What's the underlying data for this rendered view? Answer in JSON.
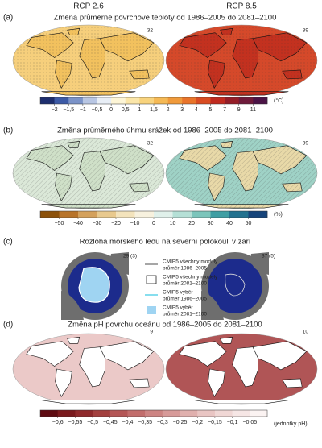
{
  "columns": [
    "RCP 2.6",
    "RCP 8.5"
  ],
  "panels": [
    {
      "label": "(a)",
      "title": "Změna průměrné povrchové teploty od 1986–2005 do 2081–2100",
      "counts": [
        32,
        39
      ],
      "colorbar": {
        "ticks": [
          "−2",
          "−1,5",
          "−1",
          "−0,5",
          "0",
          "0,5",
          "1",
          "1,5",
          "2",
          "3",
          "4",
          "5",
          "7",
          "9",
          "11"
        ],
        "unit": "(°C)",
        "colors": [
          "#1d2e6e",
          "#3c5aa6",
          "#7b93c8",
          "#b8c6e3",
          "#e8eef6",
          "#fdf5d6",
          "#fbe6a9",
          "#f8d37d",
          "#f5b955",
          "#f09a3b",
          "#e9742a",
          "#d94c22",
          "#c02a1f",
          "#941d27",
          "#6e1a3a",
          "#4b1346"
        ]
      },
      "map_colors": [
        "#f6cf7c",
        "#d5492a"
      ]
    },
    {
      "label": "(b)",
      "title": "Změna průměrného úhrnu srážek od 1986–2005 do 2081–2100",
      "counts": [
        32,
        39
      ],
      "colorbar": {
        "ticks": [
          "−50",
          "−40",
          "−30",
          "−20",
          "−10",
          "0",
          "10",
          "20",
          "30",
          "40",
          "50"
        ],
        "unit": "(%)",
        "colors": [
          "#8c510a",
          "#b8742a",
          "#d4a15c",
          "#e8c98e",
          "#f3e3bc",
          "#f7f1de",
          "#e0f0ea",
          "#b5e0d6",
          "#7cc5bb",
          "#3f9ea3",
          "#23728f",
          "#16447a"
        ]
      },
      "map_colors": [
        "#dbe8d8",
        "#9fd2c6"
      ]
    },
    {
      "label": "(c)",
      "title": "Rozloha mořského ledu na severní polokouli v září",
      "counts": [
        "29 (3)",
        "37 (5)"
      ],
      "legend": [
        {
          "lines": [
            "CMIP5 všechny modely",
            "průměr 1986–2005"
          ],
          "symbol": "line",
          "color": "#888888"
        },
        {
          "lines": [
            "CMIP5 všechny modely",
            "průměr 2081–2100"
          ],
          "symbol": "box",
          "color": "#ffffff"
        },
        {
          "lines": [
            "CMIP5 výběr",
            "průměr 1986–2005"
          ],
          "symbol": "line",
          "color": "#5fd3e8"
        },
        {
          "lines": [
            "CMIP5 výběr",
            "průměr 2081–2100"
          ],
          "symbol": "box",
          "color": "#9fd4f2"
        }
      ]
    },
    {
      "label": "(d)",
      "title": "Změna pH povrchu oceánu od 1986–2005 do 2081–2100",
      "counts": [
        9,
        10
      ],
      "colorbar": {
        "ticks": [
          "−0,6",
          "−0,55",
          "−0,5",
          "−0,45",
          "−0,4",
          "−0,35",
          "−0,3",
          "−0,25",
          "−0,2",
          "−0,15",
          "−0,1",
          "−0,05"
        ],
        "unit": "(jednotky pH)",
        "colors": [
          "#5e0b12",
          "#7a1a1e",
          "#8f2a2c",
          "#a3403f",
          "#b45656",
          "#c26d6c",
          "#cd8483",
          "#d79a99",
          "#e0b0ae",
          "#e9c5c3",
          "#f0d7d5",
          "#f6e6e5",
          "#fbf3f2"
        ]
      },
      "map_colors": [
        "#ebc9c8",
        "#b05556"
      ]
    }
  ]
}
